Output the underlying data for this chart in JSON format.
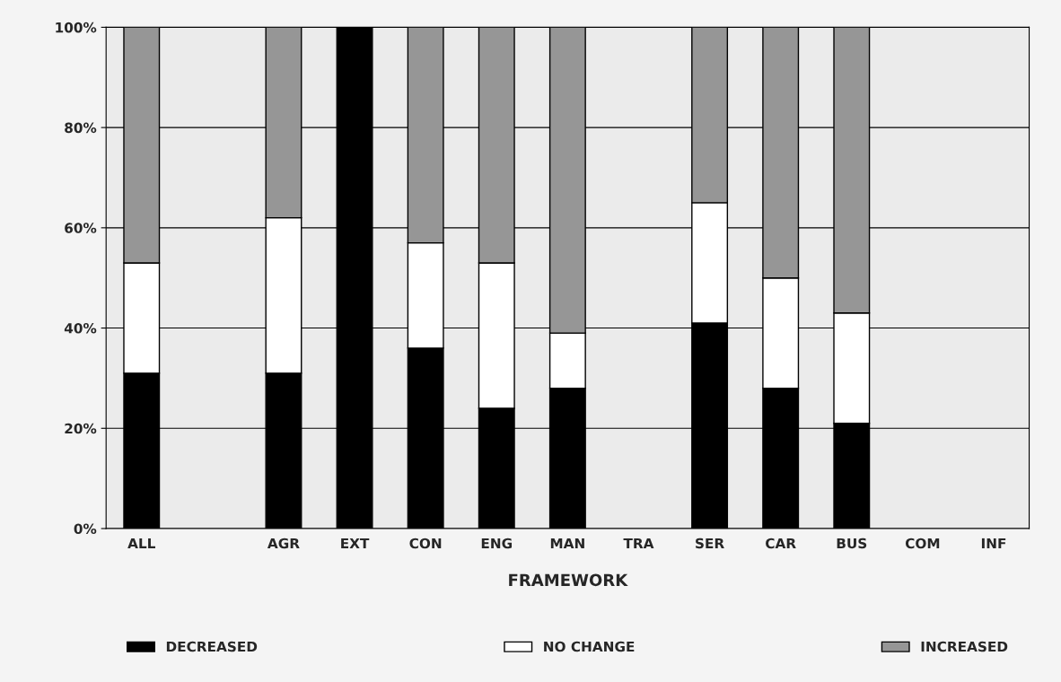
{
  "chart_data": {
    "type": "bar",
    "stacked": true,
    "xlabel": "FRAMEWORK",
    "categories": [
      "ALL",
      null,
      "AGR",
      "EXT",
      "CON",
      "ENG",
      "MAN",
      "TRA",
      "SER",
      "CAR",
      "BUS",
      "COM",
      "INF"
    ],
    "series": [
      {
        "name": "DECREASED",
        "color": "#000000",
        "values": [
          31,
          null,
          31,
          100,
          36,
          24,
          28,
          null,
          41,
          28,
          21,
          null,
          null
        ]
      },
      {
        "name": "NO CHANGE",
        "color": "#ffffff",
        "values": [
          22,
          null,
          31,
          0,
          21,
          29,
          11,
          null,
          24,
          22,
          22,
          null,
          null
        ]
      },
      {
        "name": "INCREASED",
        "color": "#969696",
        "values": [
          47,
          null,
          38,
          0,
          43,
          47,
          61,
          null,
          35,
          50,
          57,
          null,
          null
        ]
      }
    ],
    "ylim": [
      0,
      100
    ],
    "yticks": [
      {
        "value": 0,
        "label": "0%"
      },
      {
        "value": 20,
        "label": "20%"
      },
      {
        "value": 40,
        "label": "40%"
      },
      {
        "value": 60,
        "label": "60%"
      },
      {
        "value": 80,
        "label": "80%"
      },
      {
        "value": 100,
        "label": "100%"
      }
    ],
    "grid": "y",
    "legend": "bottom"
  }
}
